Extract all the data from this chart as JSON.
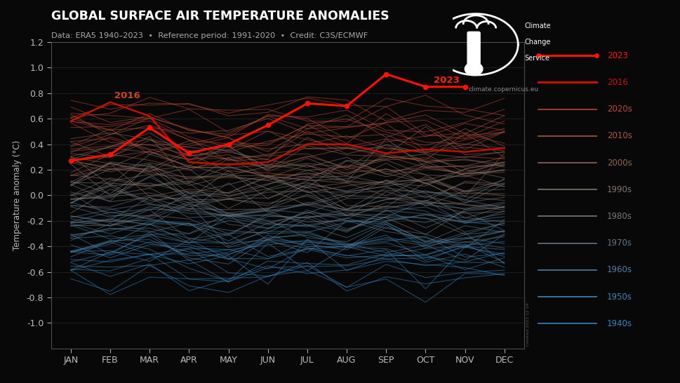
{
  "title": "GLOBAL SURFACE AIR TEMPERATURE ANOMALIES",
  "subtitle": "Data: ERA5 1940–2023  •  Reference period: 1991-2020  •  Credit: C3S/ECMWF",
  "ylabel": "Temperature anomaly (°C)",
  "background_color": "#080808",
  "text_color": "#ffffff",
  "ylim": [
    -1.2,
    1.2
  ],
  "yticks": [
    -1.0,
    -0.8,
    -0.6,
    -0.4,
    -0.2,
    0.0,
    0.2,
    0.4,
    0.6,
    0.8,
    1.0,
    1.2
  ],
  "months": [
    "JAN",
    "FEB",
    "MAR",
    "APR",
    "MAY",
    "JUN",
    "JUL",
    "AUG",
    "SEP",
    "OCT",
    "NOV",
    "DEC"
  ],
  "year_2023": [
    0.27,
    0.32,
    0.53,
    0.33,
    0.4,
    0.55,
    0.72,
    0.7,
    0.95,
    0.85,
    0.85,
    null
  ],
  "year_2016": [
    0.58,
    0.73,
    0.62,
    0.26,
    0.24,
    0.26,
    0.4,
    0.4,
    0.33,
    0.36,
    0.34,
    0.37
  ],
  "decade_order": [
    "1940s",
    "1950s",
    "1960s",
    "1970s",
    "1980s",
    "1990s",
    "2000s",
    "2010s",
    "2020s"
  ],
  "decade_base_mean": {
    "2020s": 0.55,
    "2010s": 0.35,
    "2000s": 0.22,
    "1990s": 0.1,
    "1980s": -0.02,
    "1970s": -0.15,
    "1960s": -0.28,
    "1950s": -0.4,
    "1940s": -0.55
  },
  "decade_spread": 0.22,
  "decade_colors": {
    "2020s": "#c04535",
    "2010s": "#b05540",
    "2000s": "#906555",
    "1990s": "#807570",
    "1980s": "#787878",
    "1970s": "#607585",
    "1960s": "#5080a0",
    "1950s": "#4085b5",
    "1940s": "#3085c5"
  },
  "legend_labels": [
    "2023",
    "2016",
    "2020s",
    "2010s",
    "2000s",
    "1990s",
    "1980s",
    "1970s",
    "1960s",
    "1950s",
    "1940s"
  ],
  "legend_line_colors": [
    "#ff1100",
    "#cc1100",
    "#c04535",
    "#b05540",
    "#906555",
    "#807570",
    "#787878",
    "#607585",
    "#5080a0",
    "#4085b5",
    "#3085c5"
  ],
  "watermark": "created 2023 12 04"
}
